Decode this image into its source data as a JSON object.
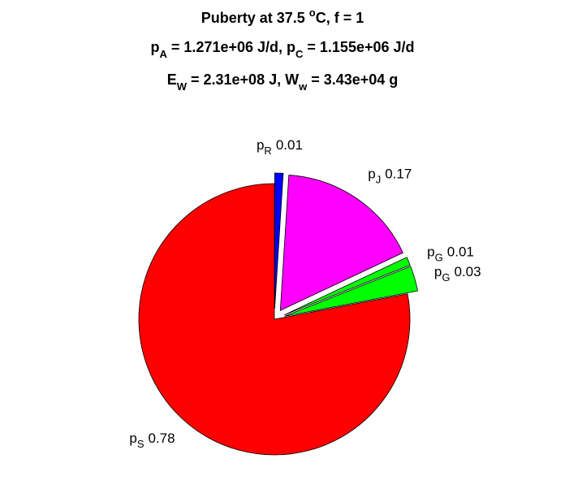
{
  "chart_data": {
    "type": "pie",
    "title": [
      [
        {
          "text": "Puberty at 37.5 "
        },
        {
          "text": "o",
          "shift": "sup"
        },
        {
          "text": "C, f = 1"
        }
      ],
      [
        {
          "text": "p"
        },
        {
          "text": "A",
          "shift": "sub"
        },
        {
          "text": " = 1.271e+06 J/d,  p"
        },
        {
          "text": "C",
          "shift": "sub"
        },
        {
          "text": " = 1.155e+06 J/d"
        }
      ],
      [
        {
          "text": "E"
        },
        {
          "text": "W",
          "shift": "sub"
        },
        {
          "text": " = 2.31e+08 J, W"
        },
        {
          "text": "w",
          "shift": "sub"
        },
        {
          "text": " = 3.43e+04 g"
        }
      ]
    ],
    "categories": [
      {
        "text": "p",
        "sub": "S"
      },
      {
        "text": "p",
        "sub": "G"
      },
      {
        "text": "p",
        "sub": "G"
      },
      {
        "text": "p",
        "sub": "J"
      },
      {
        "text": "p",
        "sub": "R"
      }
    ],
    "values": [
      0.78,
      0.03,
      0.01,
      0.17,
      0.01
    ],
    "colors": [
      "#ff0000",
      "#00ff00",
      "#00ff00",
      "#ff00ff",
      "#0000ff"
    ],
    "explode": [
      false,
      true,
      true,
      true,
      true
    ]
  }
}
